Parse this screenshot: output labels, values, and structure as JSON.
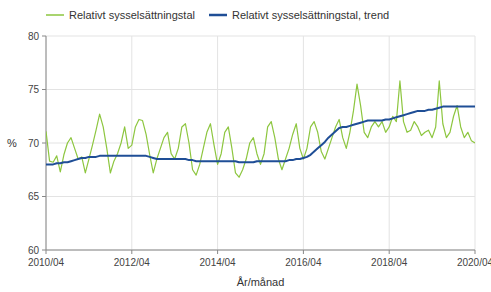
{
  "chart_data": {
    "type": "line",
    "ylabel": "%",
    "xlabel": "År/månad",
    "categories": [
      "2010/04",
      null,
      null,
      null,
      null,
      null,
      null,
      null,
      null,
      null,
      null,
      null,
      null,
      null,
      null,
      null,
      null,
      null,
      null,
      null,
      null,
      null,
      null,
      null,
      "2012/04",
      null,
      null,
      null,
      null,
      null,
      null,
      null,
      null,
      null,
      null,
      null,
      null,
      null,
      null,
      null,
      null,
      null,
      null,
      null,
      null,
      null,
      null,
      null,
      "2014/04",
      null,
      null,
      null,
      null,
      null,
      null,
      null,
      null,
      null,
      null,
      null,
      null,
      null,
      null,
      null,
      null,
      null,
      null,
      null,
      null,
      null,
      null,
      null,
      "2016/04",
      null,
      null,
      null,
      null,
      null,
      null,
      null,
      null,
      null,
      null,
      null,
      null,
      null,
      null,
      null,
      null,
      null,
      null,
      null,
      null,
      null,
      null,
      null,
      "2018/04",
      null,
      null,
      null,
      null,
      null,
      null,
      null,
      null,
      null,
      null,
      null,
      null,
      null,
      null,
      null,
      null,
      null,
      null,
      null,
      null,
      null,
      null,
      null,
      "2020/04"
    ],
    "series": [
      {
        "name": "Relativt sysselsättningstal",
        "color": "#8DC63F",
        "values": [
          71.1,
          68.3,
          68.2,
          68.8,
          67.3,
          68.9,
          70.0,
          70.5,
          69.5,
          68.5,
          68.7,
          67.2,
          68.5,
          69.8,
          71.2,
          72.7,
          71.5,
          69.5,
          67.2,
          68.3,
          69.0,
          70.0,
          71.5,
          69.5,
          69.8,
          71.5,
          72.2,
          72.1,
          70.8,
          68.9,
          67.2,
          68.5,
          69.5,
          70.5,
          71.0,
          69.0,
          68.5,
          69.5,
          71.5,
          71.8,
          70.0,
          67.5,
          67.0,
          68.0,
          69.5,
          71.0,
          71.8,
          69.8,
          68.0,
          69.0,
          71.0,
          71.5,
          69.5,
          67.2,
          66.8,
          67.5,
          68.5,
          70.0,
          70.5,
          69.0,
          68.0,
          69.0,
          71.5,
          72.0,
          70.5,
          68.5,
          67.5,
          68.5,
          69.5,
          70.8,
          71.8,
          69.5,
          68.5,
          69.5,
          71.5,
          72.0,
          71.0,
          69.2,
          68.5,
          69.5,
          70.5,
          71.5,
          72.2,
          70.5,
          69.5,
          71.0,
          73.0,
          75.5,
          73.5,
          71.0,
          70.5,
          71.5,
          72.0,
          71.5,
          72.0,
          71.0,
          71.5,
          72.5,
          72.0,
          75.8,
          72.0,
          71.0,
          71.2,
          72.0,
          71.5,
          70.7,
          71.0,
          71.2,
          70.5,
          71.5,
          75.8,
          71.8,
          70.5,
          71.0,
          72.5,
          73.5,
          71.5,
          70.5,
          71.0,
          70.2,
          70.0
        ]
      },
      {
        "name": "Relativt sysselsättningstal, trend",
        "color": "#1F4E96",
        "values": [
          68.0,
          68.0,
          68.0,
          68.1,
          68.1,
          68.2,
          68.2,
          68.3,
          68.4,
          68.5,
          68.6,
          68.6,
          68.7,
          68.7,
          68.7,
          68.8,
          68.8,
          68.8,
          68.8,
          68.8,
          68.8,
          68.8,
          68.8,
          68.8,
          68.8,
          68.8,
          68.8,
          68.8,
          68.8,
          68.7,
          68.6,
          68.5,
          68.5,
          68.5,
          68.5,
          68.5,
          68.5,
          68.5,
          68.5,
          68.5,
          68.4,
          68.4,
          68.3,
          68.3,
          68.3,
          68.3,
          68.3,
          68.3,
          68.3,
          68.3,
          68.3,
          68.3,
          68.3,
          68.3,
          68.2,
          68.2,
          68.2,
          68.2,
          68.2,
          68.3,
          68.3,
          68.3,
          68.3,
          68.3,
          68.3,
          68.3,
          68.3,
          68.3,
          68.4,
          68.4,
          68.5,
          68.5,
          68.6,
          68.7,
          68.9,
          69.2,
          69.5,
          69.8,
          70.1,
          70.5,
          70.8,
          71.1,
          71.4,
          71.5,
          71.5,
          71.6,
          71.7,
          71.8,
          71.9,
          72.0,
          72.1,
          72.1,
          72.1,
          72.1,
          72.1,
          72.2,
          72.2,
          72.3,
          72.4,
          72.5,
          72.6,
          72.7,
          72.8,
          72.9,
          73.0,
          73.0,
          73.0,
          73.1,
          73.1,
          73.2,
          73.3,
          73.4,
          73.4,
          73.4,
          73.4,
          73.4,
          73.4,
          73.4,
          73.4,
          73.4,
          73.4
        ]
      }
    ],
    "ylim": [
      60,
      80
    ],
    "yticks": [
      60,
      65,
      70,
      75,
      80
    ],
    "grid": true,
    "legend": "top-left"
  }
}
